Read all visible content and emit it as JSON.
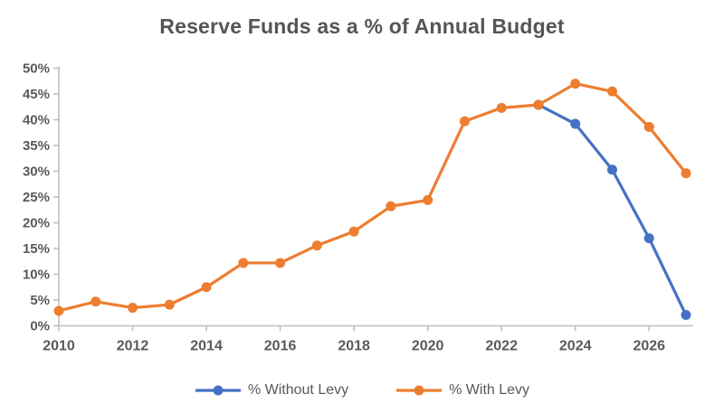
{
  "chart_data": {
    "type": "line",
    "title": "Reserve Funds as a % of Annual Budget",
    "x": [
      2010,
      2011,
      2012,
      2013,
      2014,
      2015,
      2016,
      2017,
      2018,
      2019,
      2020,
      2021,
      2022,
      2023,
      2024,
      2025,
      2026,
      2027
    ],
    "series": [
      {
        "name": "% Without Levy",
        "color": "#4472C4",
        "values": [
          null,
          null,
          null,
          null,
          null,
          null,
          null,
          null,
          null,
          null,
          null,
          null,
          null,
          42.9,
          39.2,
          30.3,
          17.0,
          2.1
        ]
      },
      {
        "name": "% With Levy",
        "color": "#ED7D31",
        "values": [
          2.9,
          4.7,
          3.5,
          4.1,
          7.5,
          12.2,
          12.2,
          15.6,
          18.3,
          23.2,
          24.4,
          39.7,
          42.3,
          42.9,
          47.0,
          45.5,
          38.6,
          29.6
        ]
      }
    ],
    "ylim": [
      0,
      50
    ],
    "y_tick_step": 5,
    "y_tick_labels": [
      "0%",
      "5%",
      "10%",
      "15%",
      "20%",
      "25%",
      "30%",
      "35%",
      "40%",
      "45%",
      "50%"
    ],
    "x_tick_labels": [
      "2010",
      "2012",
      "2014",
      "2016",
      "2018",
      "2020",
      "2022",
      "2024",
      "2026"
    ],
    "grid": false,
    "legend_position": "bottom",
    "colors": {
      "axis_line": "#BFBFBF",
      "tick_text": "#595959",
      "title_text": "#555555"
    }
  }
}
